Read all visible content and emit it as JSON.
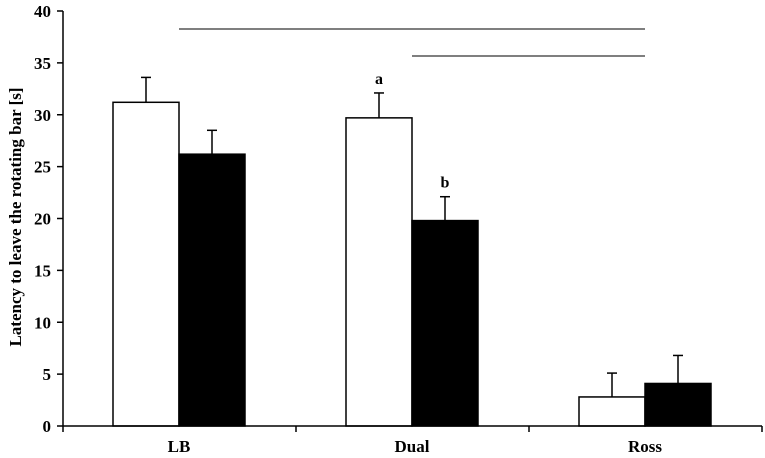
{
  "chart_data": {
    "type": "bar",
    "title": "",
    "xlabel": "",
    "ylabel": "Latency to leave the rotating bar [s]",
    "ylim": [
      0,
      40
    ],
    "yticks": [
      0,
      5,
      10,
      15,
      20,
      25,
      30,
      35,
      40
    ],
    "categories": [
      "LB",
      "Dual",
      "Ross"
    ],
    "series": [
      {
        "values": [
          31.2,
          29.7,
          2.8
        ],
        "errors": [
          2.4,
          2.4,
          2.3
        ],
        "fill": "#ffffff"
      },
      {
        "values": [
          26.2,
          19.8,
          4.1
        ],
        "errors": [
          2.3,
          2.3,
          2.7
        ],
        "fill": "#000000"
      }
    ],
    "annotations": [
      {
        "text": "a",
        "category": "Dual",
        "series": 0
      },
      {
        "text": "b",
        "category": "Dual",
        "series": 1
      }
    ],
    "significance_lines": [
      {
        "from": "LB",
        "to": "Ross"
      },
      {
        "from": "Dual",
        "to": "Ross"
      }
    ],
    "grid": false,
    "legend": "none"
  }
}
